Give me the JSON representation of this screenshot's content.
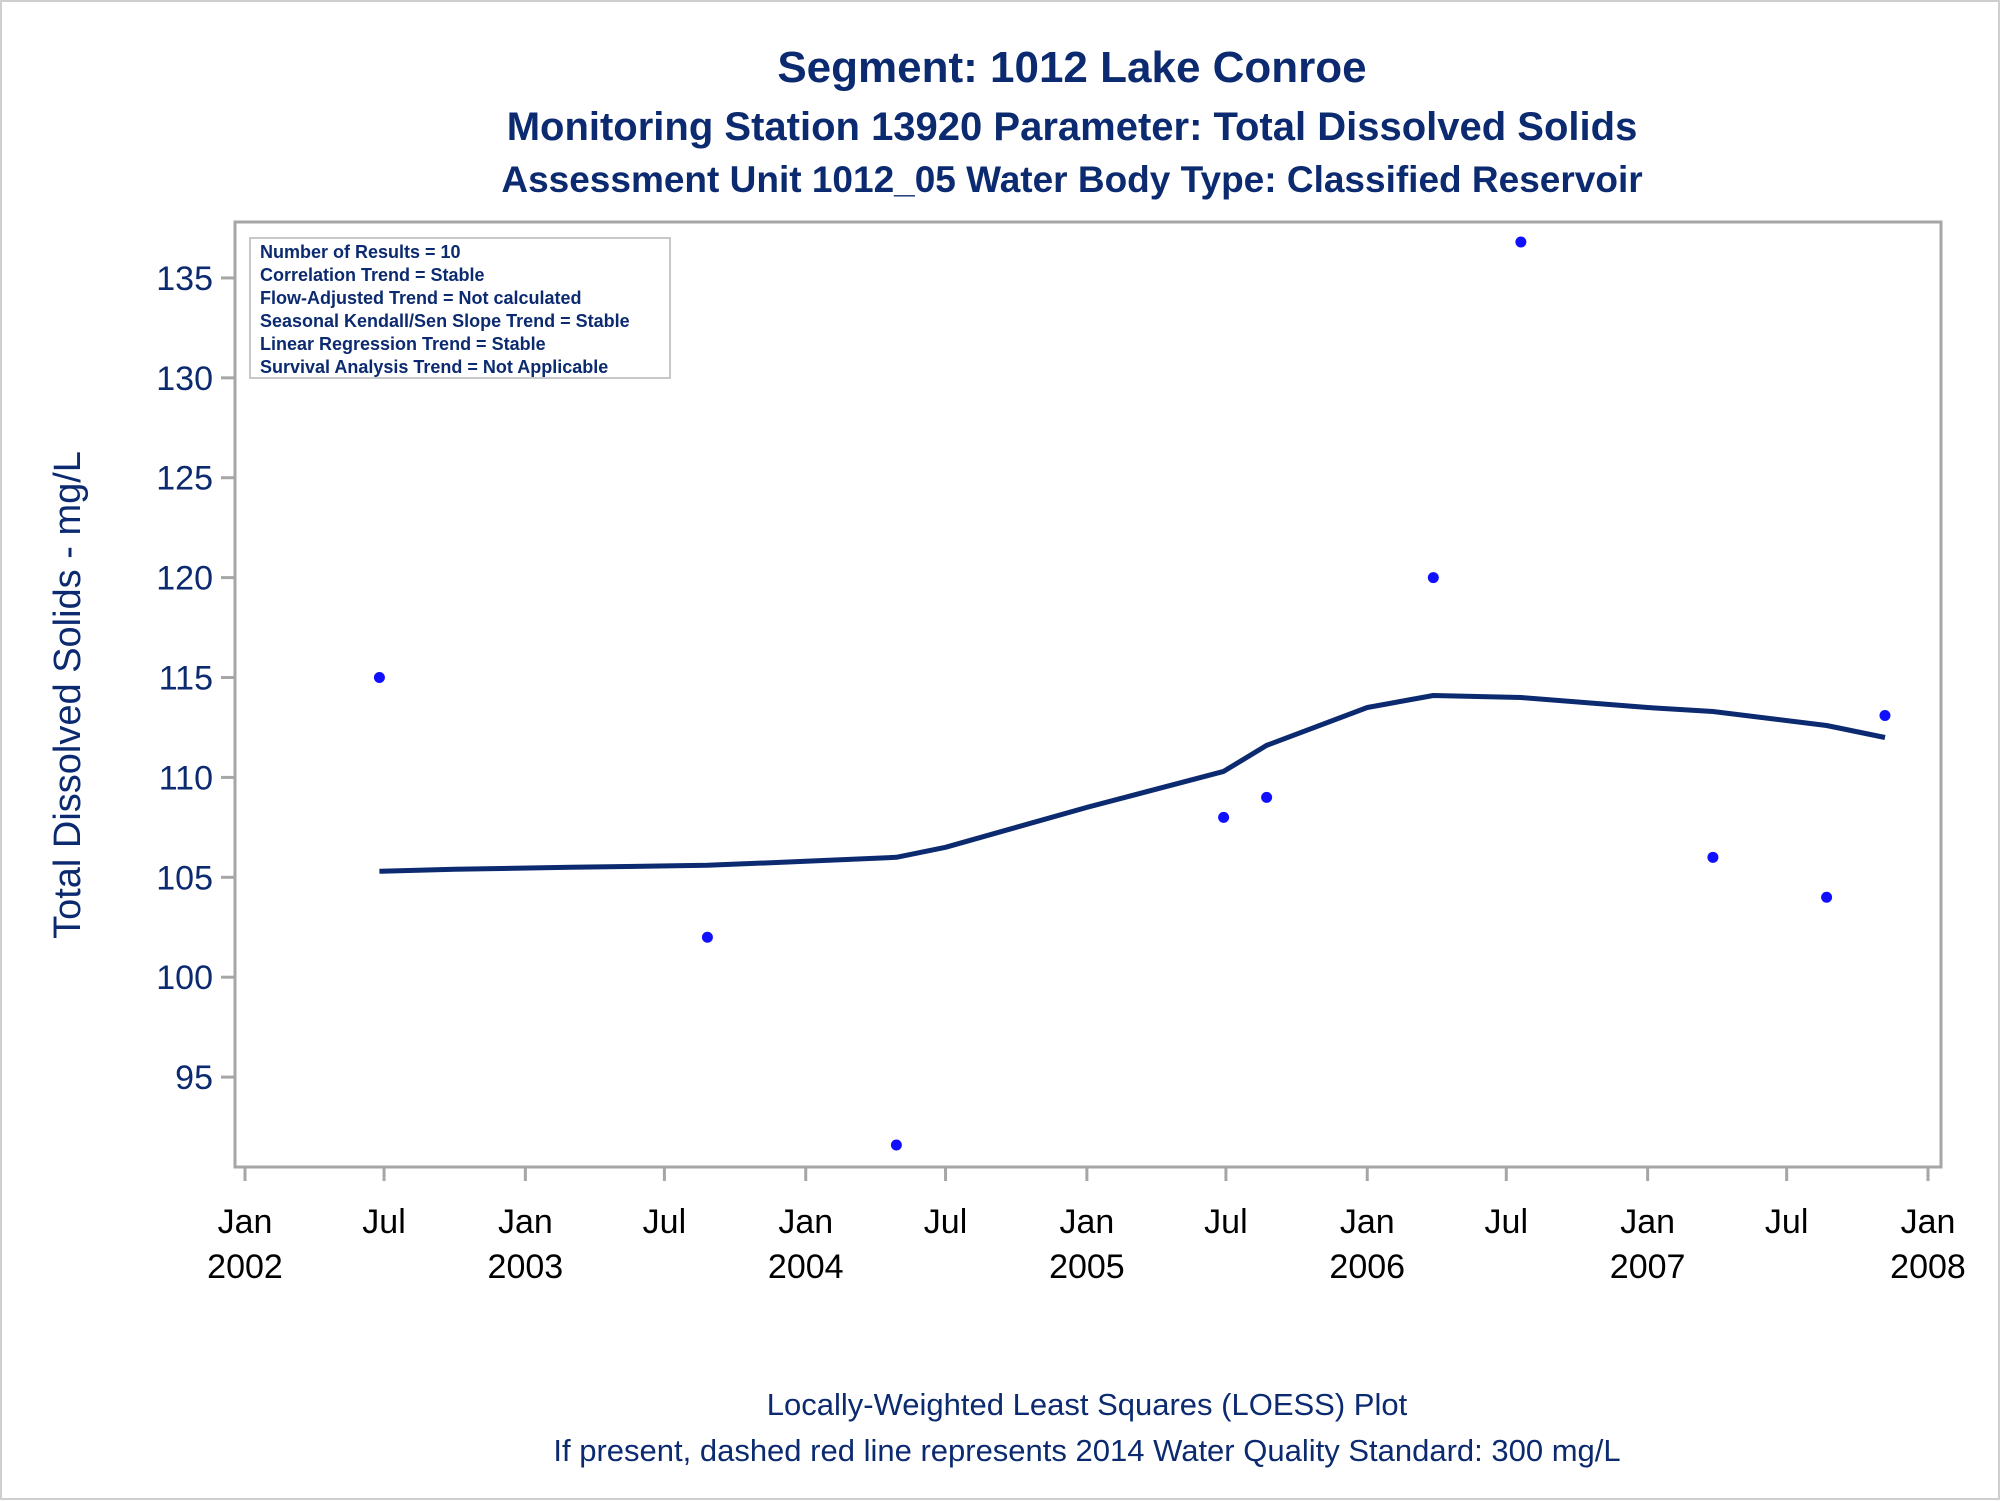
{
  "title": "Segment: 1012  Lake Conroe",
  "subtitle": "Monitoring Station 13920 Parameter: Total Dissolved Solids",
  "subtitle2": "Assessment Unit 1012_05   Water Body Type: Classified Reservoir",
  "stats_box": [
    "Number of Results = 10",
    "Correlation Trend = Stable",
    "Flow-Adjusted Trend = Not calculated",
    "Seasonal Kendall/Sen Slope Trend = Stable",
    "Linear Regression Trend = Stable",
    "Survival Analysis Trend = Not Applicable"
  ],
  "footnotes": [
    "Locally-Weighted Least Squares (LOESS) Plot",
    "If present, dashed red line represents 2014 Water Quality Standard: 300   mg/L"
  ],
  "colors": {
    "text": "#0b2a6f",
    "points": "#1010ff",
    "loess_line": "#0b2a6f",
    "frame": "#a6a6a6"
  },
  "chart_data": {
    "type": "scatter",
    "ylabel": "Total Dissolved Solids - mg/L",
    "xlabel": "",
    "xlim": [
      "2002-01-01",
      "2008-01-01"
    ],
    "ylim": [
      91,
      137.5
    ],
    "yticks": [
      95,
      100,
      105,
      110,
      115,
      120,
      125,
      130,
      135
    ],
    "xticks": [
      {
        "date": "2002-01-01",
        "line1": "Jan",
        "line2": "2002"
      },
      {
        "date": "2002-07-01",
        "line1": "Jul",
        "line2": ""
      },
      {
        "date": "2003-01-01",
        "line1": "Jan",
        "line2": "2003"
      },
      {
        "date": "2003-07-01",
        "line1": "Jul",
        "line2": ""
      },
      {
        "date": "2004-01-01",
        "line1": "Jan",
        "line2": "2004"
      },
      {
        "date": "2004-07-01",
        "line1": "Jul",
        "line2": ""
      },
      {
        "date": "2005-01-01",
        "line1": "Jan",
        "line2": "2005"
      },
      {
        "date": "2005-07-01",
        "line1": "Jul",
        "line2": ""
      },
      {
        "date": "2006-01-01",
        "line1": "Jan",
        "line2": "2006"
      },
      {
        "date": "2006-07-01",
        "line1": "Jul",
        "line2": ""
      },
      {
        "date": "2007-01-01",
        "line1": "Jan",
        "line2": "2007"
      },
      {
        "date": "2007-07-01",
        "line1": "Jul",
        "line2": ""
      },
      {
        "date": "2008-01-01",
        "line1": "Jan",
        "line2": "2008"
      }
    ],
    "series": [
      {
        "type": "scatter",
        "points": [
          {
            "x": "2002-06-25",
            "y": 115
          },
          {
            "x": "2003-08-26",
            "y": 102
          },
          {
            "x": "2004-04-28",
            "y": 91.6
          },
          {
            "x": "2005-06-28",
            "y": 108
          },
          {
            "x": "2005-08-23",
            "y": 109
          },
          {
            "x": "2006-03-28",
            "y": 120
          },
          {
            "x": "2006-07-20",
            "y": 136.8
          },
          {
            "x": "2007-03-27",
            "y": 106
          },
          {
            "x": "2007-08-22",
            "y": 104
          },
          {
            "x": "2007-11-06",
            "y": 113.1
          }
        ]
      },
      {
        "type": "line",
        "points": [
          {
            "x": "2002-06-25",
            "y": 105.3
          },
          {
            "x": "2002-10-01",
            "y": 105.4
          },
          {
            "x": "2003-03-01",
            "y": 105.5
          },
          {
            "x": "2003-08-26",
            "y": 105.6
          },
          {
            "x": "2004-01-01",
            "y": 105.8
          },
          {
            "x": "2004-04-28",
            "y": 106.0
          },
          {
            "x": "2004-07-01",
            "y": 106.5
          },
          {
            "x": "2005-01-01",
            "y": 108.5
          },
          {
            "x": "2005-06-28",
            "y": 110.3
          },
          {
            "x": "2005-08-23",
            "y": 111.6
          },
          {
            "x": "2006-01-01",
            "y": 113.5
          },
          {
            "x": "2006-03-28",
            "y": 114.1
          },
          {
            "x": "2006-07-20",
            "y": 114.0
          },
          {
            "x": "2007-01-01",
            "y": 113.5
          },
          {
            "x": "2007-03-27",
            "y": 113.3
          },
          {
            "x": "2007-08-22",
            "y": 112.6
          },
          {
            "x": "2007-11-06",
            "y": 112.0
          }
        ]
      }
    ]
  }
}
